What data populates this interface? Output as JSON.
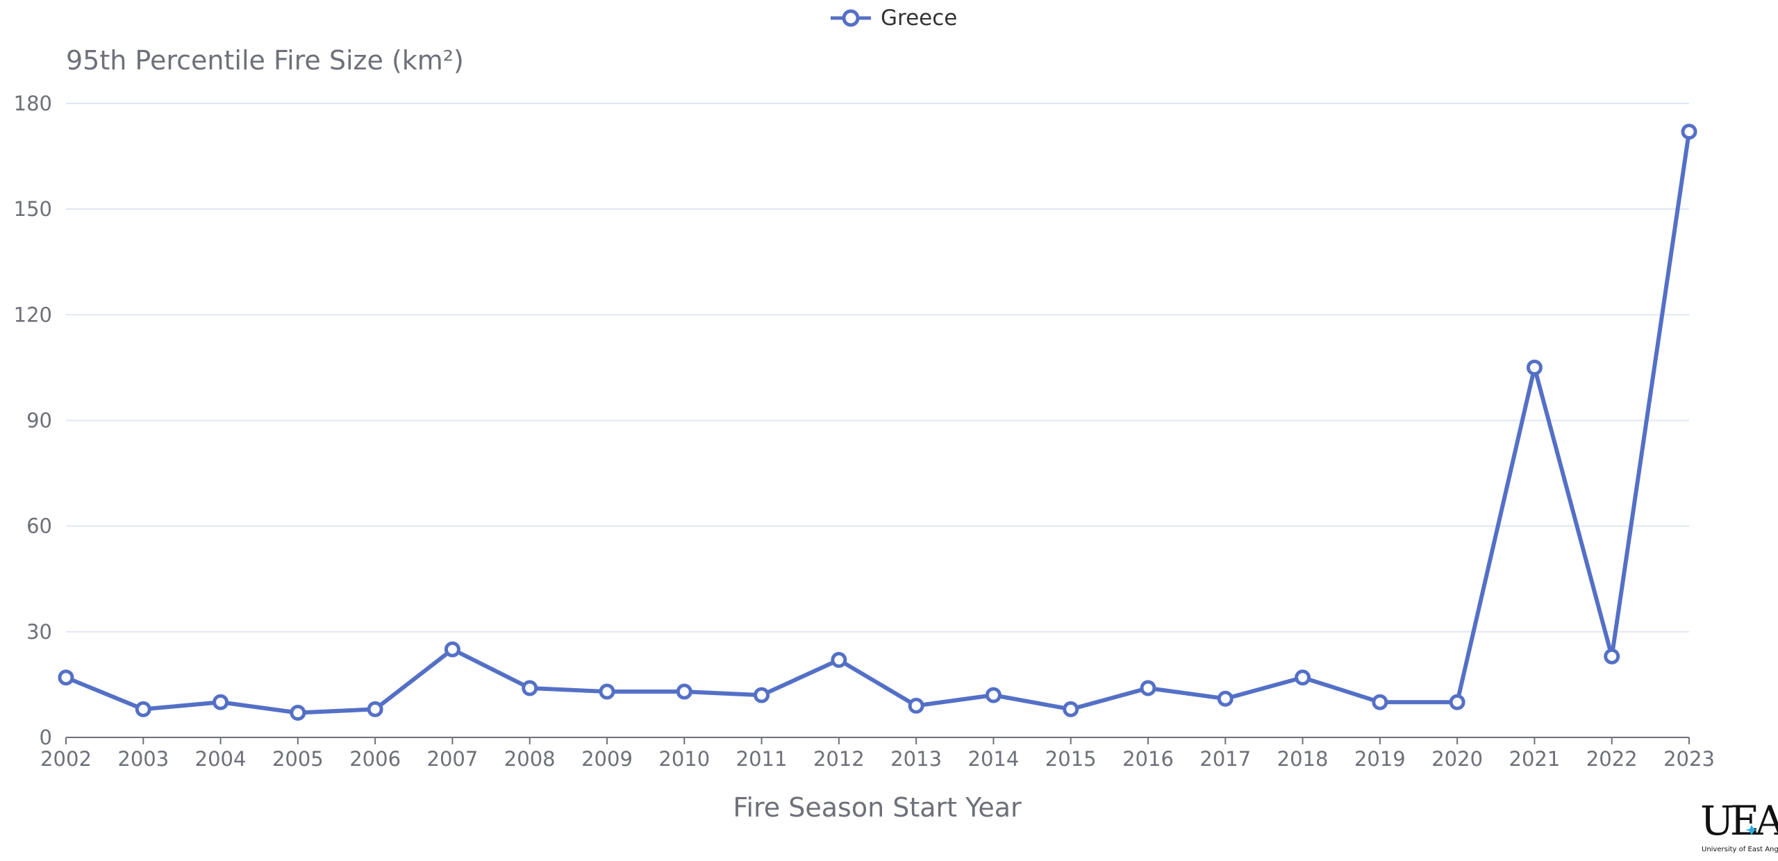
{
  "chart_data": {
    "type": "line",
    "categories": [
      "2002",
      "2003",
      "2004",
      "2005",
      "2006",
      "2007",
      "2008",
      "2009",
      "2010",
      "2011",
      "2012",
      "2013",
      "2014",
      "2015",
      "2016",
      "2017",
      "2018",
      "2019",
      "2020",
      "2021",
      "2022",
      "2023"
    ],
    "series": [
      {
        "name": "Greece",
        "values": [
          17,
          8,
          10,
          7,
          8,
          25,
          14,
          13,
          13,
          12,
          22,
          9,
          12,
          8,
          14,
          11,
          17,
          10,
          10,
          105,
          23,
          172
        ],
        "color": "#5470c6"
      }
    ],
    "ylabel": "95th Percentile Fire Size (km²)",
    "xlabel": "Fire Season Start Year",
    "ylim": [
      0,
      180
    ],
    "yticks": [
      0,
      30,
      60,
      90,
      120,
      150,
      180
    ],
    "grid": true,
    "legend_position": "top-center"
  },
  "logo": {
    "text": "UEA",
    "subtitle": "University of East Anglia"
  }
}
